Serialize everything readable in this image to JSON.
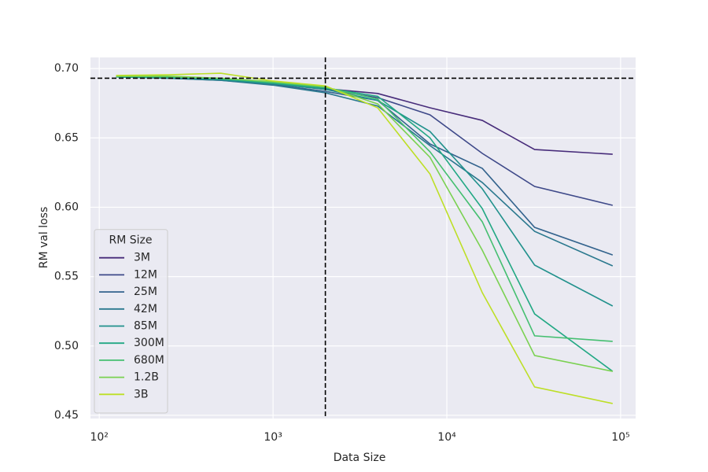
{
  "chart_data": {
    "type": "line",
    "xlabel": "Data Size",
    "ylabel": "RM val loss",
    "x": [
      125,
      250,
      500,
      1000,
      2000,
      4000,
      8000,
      16000,
      32000,
      90000
    ],
    "xscale": "log",
    "xlim": [
      89,
      122000
    ],
    "xticks": [
      {
        "value": 100,
        "label": "10²"
      },
      {
        "value": 1000,
        "label": "10³"
      },
      {
        "value": 10000,
        "label": "10⁴"
      },
      {
        "value": 100000,
        "label": "10⁵"
      }
    ],
    "ylim": [
      0.4477,
      0.708
    ],
    "yticks": [
      {
        "value": 0.45,
        "label": "0.45"
      },
      {
        "value": 0.5,
        "label": "0.50"
      },
      {
        "value": 0.55,
        "label": "0.55"
      },
      {
        "value": 0.6,
        "label": "0.60"
      },
      {
        "value": 0.65,
        "label": "0.65"
      },
      {
        "value": 0.7,
        "label": "0.70"
      }
    ],
    "grid": true,
    "hline": 0.693,
    "vline": 2000,
    "legend_title": "RM Size",
    "legend": "lower left",
    "series": [
      {
        "name": "3M",
        "color": "#472c7a",
        "values": [
          0.694,
          0.6935,
          0.6925,
          0.6895,
          0.6855,
          0.682,
          0.6717,
          0.6626,
          0.6416,
          0.6382
        ]
      },
      {
        "name": "12M",
        "color": "#3e4989",
        "values": [
          0.694,
          0.6935,
          0.692,
          0.689,
          0.685,
          0.679,
          0.6666,
          0.6388,
          0.615,
          0.6014
        ]
      },
      {
        "name": "25M",
        "color": "#33638d",
        "values": [
          0.694,
          0.693,
          0.6915,
          0.6885,
          0.6835,
          0.677,
          0.6456,
          0.628,
          0.5855,
          0.5656
        ]
      },
      {
        "name": "42M",
        "color": "#2a788e",
        "values": [
          0.694,
          0.693,
          0.6915,
          0.688,
          0.6825,
          0.673,
          0.6444,
          0.6178,
          0.5826,
          0.5577
        ]
      },
      {
        "name": "85M",
        "color": "#21918c",
        "values": [
          0.694,
          0.6935,
          0.692,
          0.689,
          0.685,
          0.677,
          0.6546,
          0.6133,
          0.5583,
          0.5288
        ]
      },
      {
        "name": "300M",
        "color": "#22a884",
        "values": [
          0.694,
          0.694,
          0.6925,
          0.6895,
          0.686,
          0.68,
          0.65,
          0.599,
          0.5231,
          0.4817
        ]
      },
      {
        "name": "680M",
        "color": "#44bf70",
        "values": [
          0.6945,
          0.694,
          0.693,
          0.69,
          0.6865,
          0.678,
          0.64,
          0.5895,
          0.5073,
          0.5033
        ]
      },
      {
        "name": "1.2B",
        "color": "#7ad151",
        "values": [
          0.6945,
          0.6945,
          0.693,
          0.6905,
          0.687,
          0.6745,
          0.636,
          0.569,
          0.4931,
          0.4817
        ]
      },
      {
        "name": "3B",
        "color": "#bddf26",
        "values": [
          0.695,
          0.6955,
          0.6966,
          0.691,
          0.6875,
          0.6717,
          0.624,
          0.5384,
          0.4704,
          0.4585
        ]
      }
    ]
  }
}
